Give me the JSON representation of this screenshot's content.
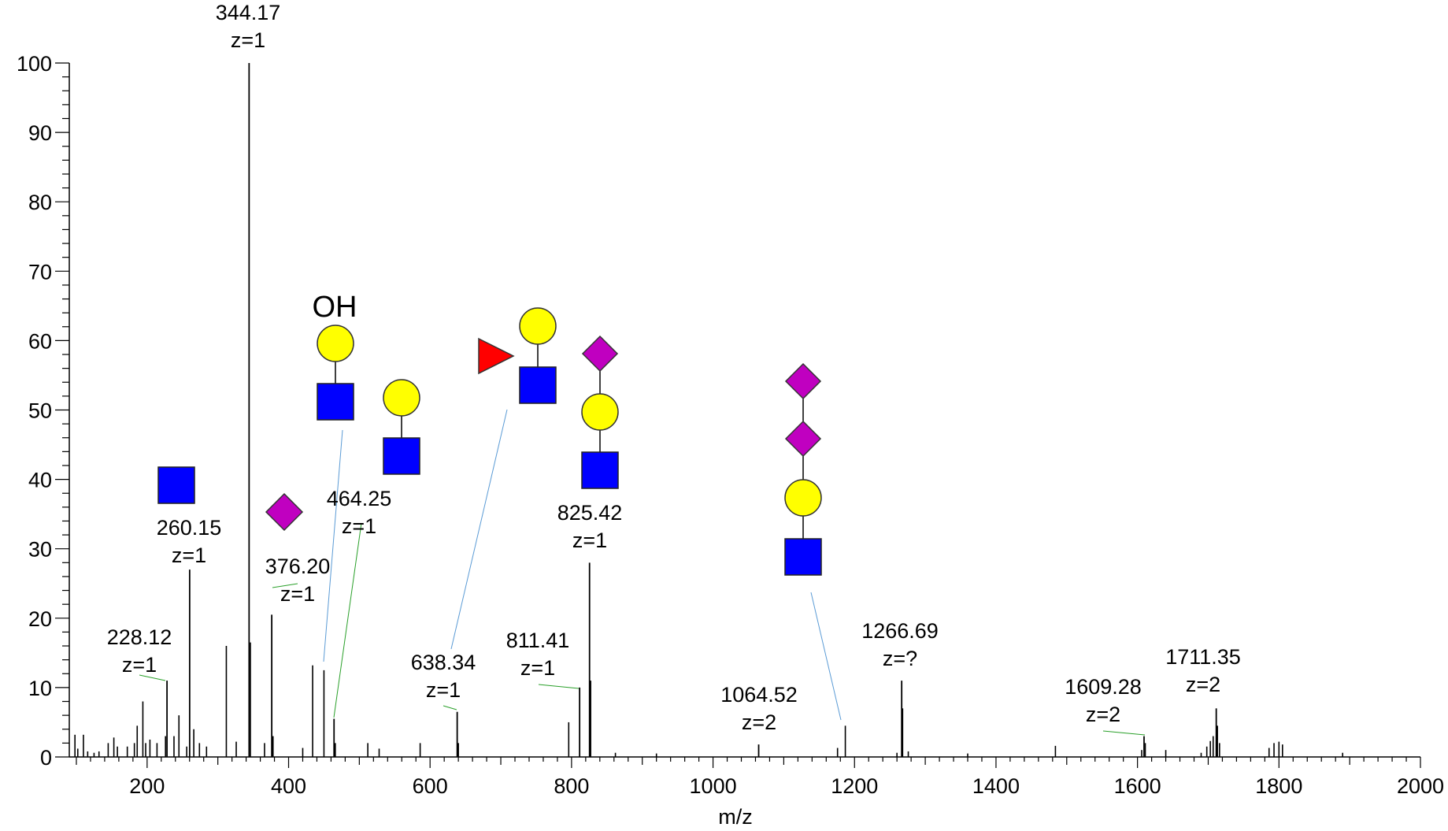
{
  "chart_data": {
    "type": "bar",
    "xlabel": "m/z",
    "ylabel": "",
    "xlim": [
      90,
      2000
    ],
    "ylim": [
      0,
      100
    ],
    "x_ticks": [
      200,
      400,
      600,
      800,
      1000,
      1200,
      1400,
      1600,
      1800,
      2000
    ],
    "y_ticks": [
      0,
      10,
      20,
      30,
      40,
      50,
      60,
      70,
      80,
      90,
      100
    ],
    "grid": false,
    "colors": {
      "line": "#000000",
      "blue_leader": "#5b9bd5",
      "green_leader": "#2aa02a",
      "hexnac": "#0000ff",
      "hex": "#ffff00",
      "neuac": "#c000c0",
      "fuc": "#ff0000"
    },
    "labeled_peaks": [
      {
        "mz": 228.12,
        "intensity": 11,
        "mz_label": "228.12",
        "z_label": "z=1"
      },
      {
        "mz": 260.15,
        "intensity": 27,
        "mz_label": "260.15",
        "z_label": "z=1"
      },
      {
        "mz": 344.17,
        "intensity": 100,
        "mz_label": "344.17",
        "z_label": "z=1"
      },
      {
        "mz": 376.2,
        "intensity": 20.5,
        "mz_label": "376.20",
        "z_label": "z=1"
      },
      {
        "mz": 464.25,
        "intensity": 5.5,
        "mz_label": "464.25",
        "z_label": "z=1"
      },
      {
        "mz": 638.34,
        "intensity": 6.5,
        "mz_label": "638.34",
        "z_label": "z=1"
      },
      {
        "mz": 811.41,
        "intensity": 10,
        "mz_label": "811.41",
        "z_label": "z=1"
      },
      {
        "mz": 825.42,
        "intensity": 28,
        "mz_label": "825.42",
        "z_label": "z=1"
      },
      {
        "mz": 1064.52,
        "intensity": 1.8,
        "mz_label": "1064.52",
        "z_label": "z=2"
      },
      {
        "mz": 1266.69,
        "intensity": 11,
        "mz_label": "1266.69",
        "z_label": "z=?"
      },
      {
        "mz": 1609.28,
        "intensity": 3,
        "mz_label": "1609.28",
        "z_label": "z=2"
      },
      {
        "mz": 1711.35,
        "intensity": 7,
        "mz_label": "1711.35",
        "z_label": "z=2"
      }
    ],
    "minor_peaks": [
      {
        "mz": 98,
        "intensity": 3.2
      },
      {
        "mz": 102,
        "intensity": 1.2
      },
      {
        "mz": 110,
        "intensity": 3.2
      },
      {
        "mz": 116,
        "intensity": 0.8
      },
      {
        "mz": 125,
        "intensity": 0.6
      },
      {
        "mz": 132,
        "intensity": 0.8
      },
      {
        "mz": 145,
        "intensity": 2
      },
      {
        "mz": 153,
        "intensity": 2.8
      },
      {
        "mz": 158,
        "intensity": 1.5
      },
      {
        "mz": 172,
        "intensity": 1.5
      },
      {
        "mz": 182,
        "intensity": 2
      },
      {
        "mz": 186,
        "intensity": 4.5
      },
      {
        "mz": 194,
        "intensity": 8
      },
      {
        "mz": 198,
        "intensity": 2
      },
      {
        "mz": 204,
        "intensity": 2.5
      },
      {
        "mz": 214,
        "intensity": 2
      },
      {
        "mz": 226,
        "intensity": 3
      },
      {
        "mz": 238,
        "intensity": 3
      },
      {
        "mz": 245,
        "intensity": 6
      },
      {
        "mz": 256,
        "intensity": 1.5
      },
      {
        "mz": 266,
        "intensity": 4
      },
      {
        "mz": 274,
        "intensity": 2
      },
      {
        "mz": 284,
        "intensity": 1.5
      },
      {
        "mz": 312,
        "intensity": 16
      },
      {
        "mz": 326,
        "intensity": 2.2
      },
      {
        "mz": 346,
        "intensity": 16.5
      },
      {
        "mz": 366,
        "intensity": 2
      },
      {
        "mz": 378,
        "intensity": 3
      },
      {
        "mz": 420,
        "intensity": 1.3
      },
      {
        "mz": 434,
        "intensity": 13.2
      },
      {
        "mz": 450,
        "intensity": 12.5
      },
      {
        "mz": 466,
        "intensity": 2
      },
      {
        "mz": 512,
        "intensity": 2
      },
      {
        "mz": 528,
        "intensity": 1.2
      },
      {
        "mz": 586,
        "intensity": 2
      },
      {
        "mz": 640,
        "intensity": 2
      },
      {
        "mz": 796,
        "intensity": 5
      },
      {
        "mz": 827,
        "intensity": 11
      },
      {
        "mz": 862,
        "intensity": 0.6
      },
      {
        "mz": 920,
        "intensity": 0.5
      },
      {
        "mz": 1176,
        "intensity": 1.3
      },
      {
        "mz": 1187,
        "intensity": 4.5
      },
      {
        "mz": 1260,
        "intensity": 0.6
      },
      {
        "mz": 1268,
        "intensity": 7
      },
      {
        "mz": 1276,
        "intensity": 0.8
      },
      {
        "mz": 1360,
        "intensity": 0.5
      },
      {
        "mz": 1484,
        "intensity": 1.6
      },
      {
        "mz": 1606,
        "intensity": 1
      },
      {
        "mz": 1611,
        "intensity": 2
      },
      {
        "mz": 1640,
        "intensity": 1
      },
      {
        "mz": 1690,
        "intensity": 0.6
      },
      {
        "mz": 1698,
        "intensity": 1.5
      },
      {
        "mz": 1703,
        "intensity": 2.3
      },
      {
        "mz": 1707,
        "intensity": 3
      },
      {
        "mz": 1713,
        "intensity": 4.5
      },
      {
        "mz": 1716,
        "intensity": 2
      },
      {
        "mz": 1786,
        "intensity": 1.3
      },
      {
        "mz": 1793,
        "intensity": 2
      },
      {
        "mz": 1800,
        "intensity": 2.2
      },
      {
        "mz": 1805,
        "intensity": 1.8
      },
      {
        "mz": 1890,
        "intensity": 0.6
      }
    ],
    "annotations": [
      {
        "oh_text": "OH"
      }
    ]
  }
}
